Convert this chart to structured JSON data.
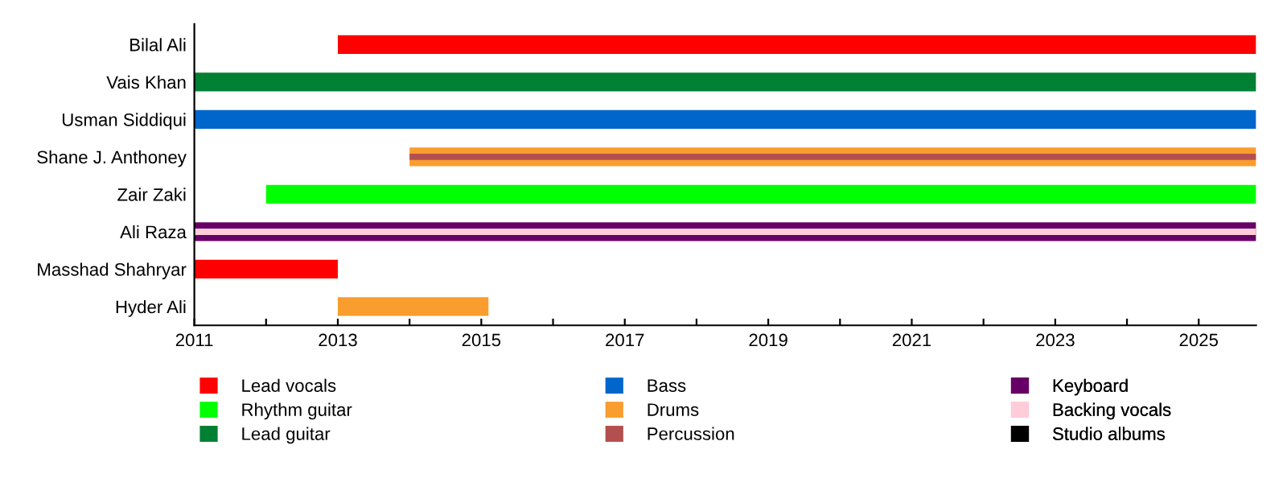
{
  "chart_data": {
    "type": "bar",
    "orientation": "horizontal",
    "categories": [
      "Bilal Ali",
      "Vais Khan",
      "Usman Siddiqui",
      "Shane J. Anthoney",
      "Zair Zaki",
      "Ali Raza",
      "Masshad Shahryar",
      "Hyder Ali"
    ],
    "series": [
      {
        "name": "Lead vocals",
        "color": "#ff0000",
        "base": [
          2013,
          null,
          null,
          null,
          null,
          null,
          2011,
          null
        ],
        "values": [
          12.8,
          null,
          null,
          null,
          null,
          null,
          2,
          null
        ]
      },
      {
        "name": "Rhythm guitar",
        "color": "#00ff00",
        "base": [
          null,
          null,
          null,
          null,
          2012,
          null,
          null,
          null
        ],
        "values": [
          null,
          null,
          null,
          null,
          13.8,
          null,
          null,
          null
        ]
      },
      {
        "name": "Lead guitar",
        "color": "#008033",
        "base": [
          null,
          2011,
          null,
          null,
          null,
          null,
          null,
          null
        ],
        "values": [
          null,
          14.8,
          null,
          null,
          null,
          null,
          null,
          null
        ]
      },
      {
        "name": "Bass",
        "color": "#0066cc",
        "base": [
          null,
          null,
          2011,
          null,
          null,
          null,
          null,
          null
        ],
        "values": [
          null,
          null,
          14.8,
          null,
          null,
          null,
          null,
          null
        ]
      },
      {
        "name": "Drums",
        "color": "#f99d2e",
        "base": [
          null,
          null,
          null,
          2014,
          null,
          null,
          null,
          2013
        ],
        "values": [
          null,
          null,
          null,
          11.8,
          null,
          null,
          null,
          2.1
        ]
      },
      {
        "name": "Percussion",
        "color": "#b34f4f",
        "base": [
          null,
          null,
          null,
          2014,
          null,
          null,
          null,
          null
        ],
        "values": [
          null,
          null,
          null,
          11.8,
          null,
          null,
          null,
          null
        ]
      },
      {
        "name": "Keyboard",
        "color": "#660066",
        "base": [
          null,
          null,
          null,
          null,
          null,
          2011,
          null,
          null
        ],
        "values": [
          null,
          null,
          null,
          null,
          null,
          14.8,
          null,
          null
        ]
      },
      {
        "name": "Backing vocals",
        "color": "#ffccd9",
        "base": [
          null,
          null,
          null,
          null,
          null,
          2011,
          null,
          null
        ],
        "values": [
          null,
          null,
          null,
          null,
          null,
          14.8,
          null,
          null
        ]
      },
      {
        "name": "Studio albums",
        "color": "#000000",
        "values": [
          null,
          null,
          null,
          null,
          null,
          null,
          null,
          null
        ]
      }
    ],
    "xlim": [
      2011,
      2025.8
    ],
    "xticks": [
      2011,
      {
        "value": 2012,
        "label": null
      },
      2013,
      {
        "value": 2014,
        "label": null
      },
      2015,
      {
        "value": 2016,
        "label": null
      },
      2017,
      {
        "value": 2018,
        "label": null
      },
      2019,
      {
        "value": 2020,
        "label": null
      },
      2021,
      {
        "value": 2022,
        "label": null
      },
      2023,
      {
        "value": 2024,
        "label": null
      },
      2025
    ],
    "grid": false,
    "legend": "bottom"
  }
}
